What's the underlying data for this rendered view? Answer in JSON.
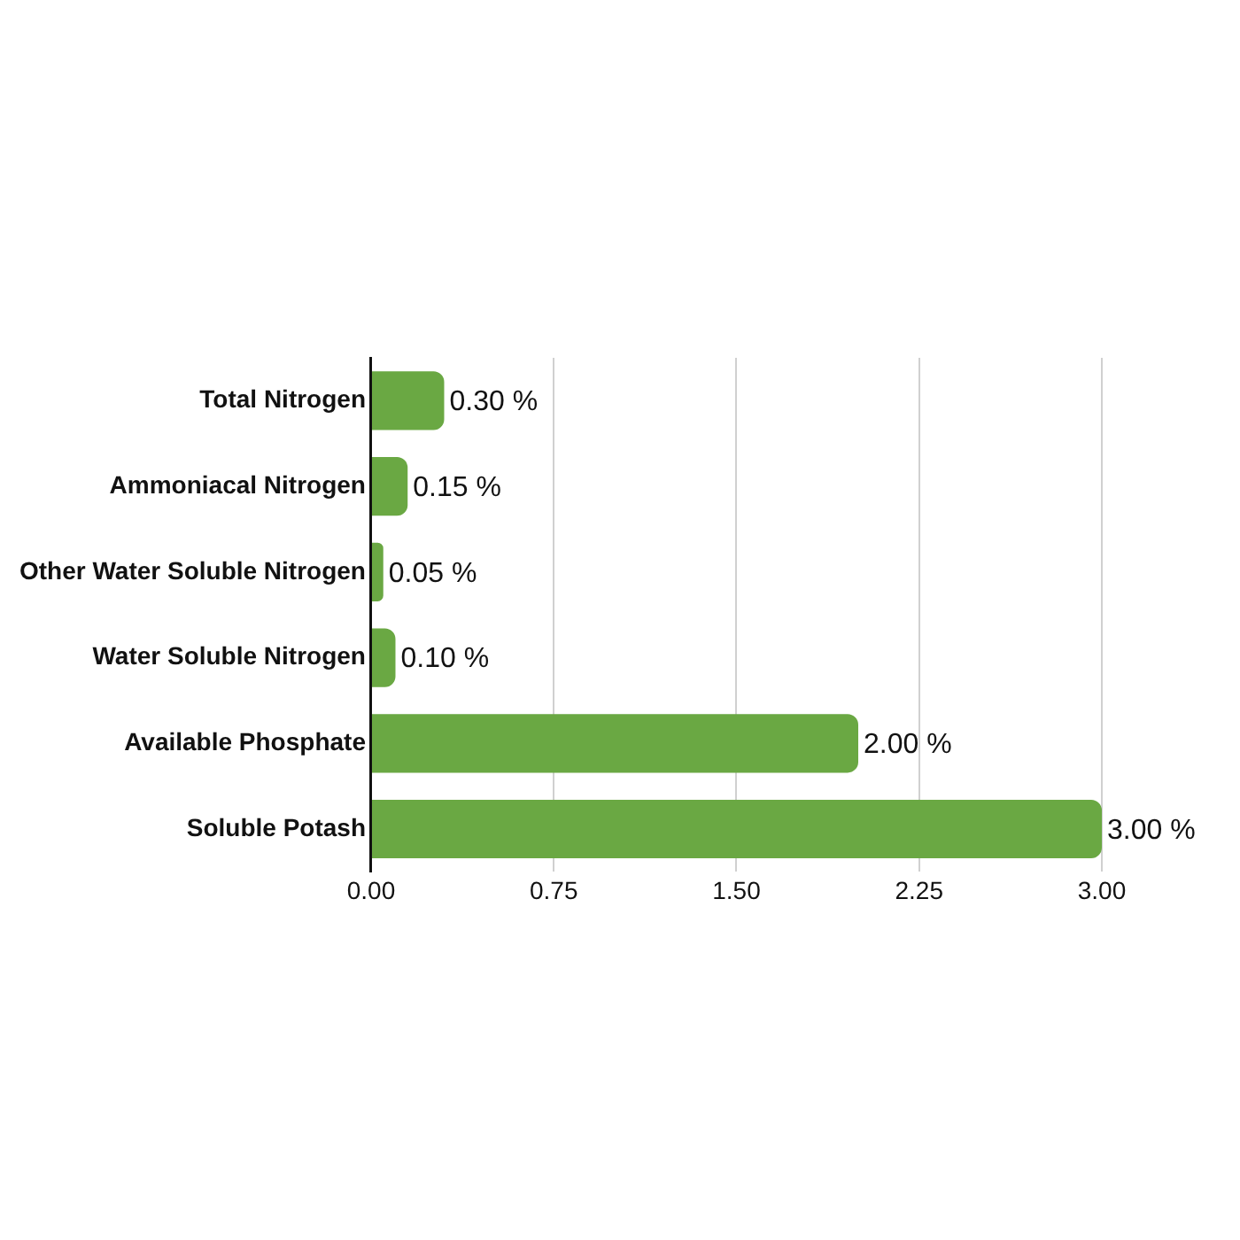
{
  "chart_data": {
    "type": "bar",
    "orientation": "horizontal",
    "categories": [
      "Total Nitrogen",
      "Ammoniacal Nitrogen",
      "Other Water Soluble Nitrogen",
      "Water Soluble Nitrogen",
      "Available Phosphate",
      "Soluble Potash"
    ],
    "values": [
      0.3,
      0.15,
      0.05,
      0.1,
      2.0,
      3.0
    ],
    "value_labels": [
      "0.30 %",
      "0.15 %",
      "0.05 %",
      "0.10 %",
      "2.00 %",
      "3.00 %"
    ],
    "color": "#6aa843",
    "xlim": [
      0,
      3
    ],
    "xticks": [
      {
        "value": 0,
        "label": "0.00"
      },
      {
        "value": 0.75,
        "label": "0.75"
      },
      {
        "value": 1.5,
        "label": "1.50"
      },
      {
        "value": 2.25,
        "label": "2.25"
      },
      {
        "value": 3,
        "label": "3.00"
      }
    ],
    "grid": "x",
    "legend": false
  }
}
